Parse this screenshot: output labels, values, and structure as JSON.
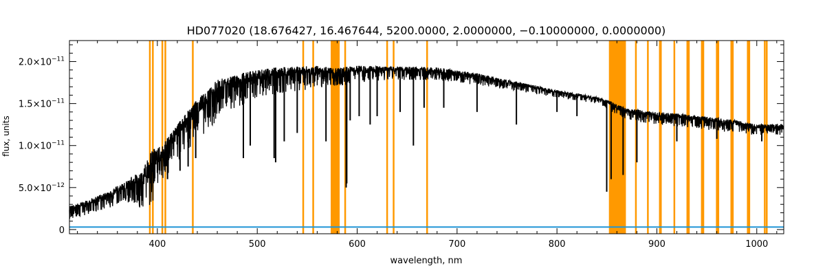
{
  "chart_data": {
    "type": "line",
    "title": "HD077020   (18.676427, 16.467644, 5200.0000, 2.0000000, −0.10000000, 0.0000000)",
    "xlabel": "wavelength, nm",
    "ylabel": "flux, units",
    "xlim": [
      312,
      1027
    ],
    "ylim": [
      -5e-13,
      2.25e-11
    ],
    "x_ticks": [
      400,
      500,
      600,
      700,
      800,
      900,
      1000
    ],
    "y_ticks": [
      {
        "value": 0,
        "mant": "0",
        "exp": ""
      },
      {
        "value": 5e-12,
        "mant": "5.0×10",
        "exp": "−12"
      },
      {
        "value": 1e-11,
        "mant": "1.0×10",
        "exp": "−11"
      },
      {
        "value": 1.5e-11,
        "mant": "1.5×10",
        "exp": "−11"
      },
      {
        "value": 2e-11,
        "mant": "2.0×10",
        "exp": "−11"
      }
    ],
    "spectrum": {
      "color": "#000000",
      "envelope": [
        [
          312,
          1.2e-12,
          2.8e-12
        ],
        [
          330,
          1.8e-12,
          3.5e-12
        ],
        [
          350,
          2.5e-12,
          4.5e-12
        ],
        [
          370,
          3e-12,
          6e-12
        ],
        [
          385,
          2.5e-12,
          7e-12
        ],
        [
          395,
          3e-12,
          9.5e-12
        ],
        [
          405,
          5.5e-12,
          1e-11
        ],
        [
          420,
          8e-12,
          1.25e-11
        ],
        [
          440,
          1.05e-11,
          1.55e-11
        ],
        [
          460,
          1.3e-11,
          1.78e-11
        ],
        [
          480,
          1.45e-11,
          1.85e-11
        ],
        [
          500,
          1.55e-11,
          1.9e-11
        ],
        [
          520,
          1.6e-11,
          1.93e-11
        ],
        [
          540,
          1.65e-11,
          1.94e-11
        ],
        [
          560,
          1.68e-11,
          1.95e-11
        ],
        [
          578,
          1.7e-11,
          1.92e-11
        ],
        [
          600,
          1.75e-11,
          1.95e-11
        ],
        [
          640,
          1.78e-11,
          1.94e-11
        ],
        [
          680,
          1.78e-11,
          1.93e-11
        ],
        [
          720,
          1.72e-11,
          1.86e-11
        ],
        [
          760,
          1.65e-11,
          1.76e-11
        ],
        [
          800,
          1.57e-11,
          1.66e-11
        ],
        [
          840,
          1.5e-11,
          1.58e-11
        ],
        [
          855,
          1.4e-11,
          1.52e-11
        ],
        [
          870,
          1.3e-11,
          1.44e-11
        ],
        [
          900,
          1.25e-11,
          1.4e-11
        ],
        [
          940,
          1.2e-11,
          1.36e-11
        ],
        [
          980,
          1.15e-11,
          1.3e-11
        ],
        [
          1000,
          1.12e-11,
          1.25e-11
        ],
        [
          1027,
          1.12e-11,
          1.26e-11
        ]
      ],
      "absorption_lines": [
        [
          393.4,
          5.5e-12
        ],
        [
          396.8,
          5.8e-12
        ],
        [
          410.2,
          6e-12
        ],
        [
          422.7,
          7e-12
        ],
        [
          430.8,
          7.5e-12
        ],
        [
          438.4,
          8.5e-12
        ],
        [
          486.1,
          8.5e-12
        ],
        [
          493.0,
          1e-11
        ],
        [
          516.9,
          8.5e-12
        ],
        [
          518.4,
          8e-12
        ],
        [
          527.0,
          1.05e-11
        ],
        [
          540.0,
          1.15e-11
        ],
        [
          568.8,
          1.05e-11
        ],
        [
          589.0,
          5e-12
        ],
        [
          589.6,
          5.5e-12
        ],
        [
          593.0,
          1.3e-11
        ],
        [
          602.0,
          1.35e-11
        ],
        [
          613.0,
          1.25e-11
        ],
        [
          620.0,
          1.35e-11
        ],
        [
          643.0,
          1.4e-11
        ],
        [
          656.3,
          1e-11
        ],
        [
          667.0,
          1.45e-11
        ],
        [
          686.7,
          1.45e-11
        ],
        [
          720.0,
          1.4e-11
        ],
        [
          759.4,
          1.25e-11
        ],
        [
          800.0,
          1.4e-11
        ],
        [
          820.0,
          1.35e-11
        ],
        [
          849.8,
          4.5e-12
        ],
        [
          854.2,
          6e-12
        ],
        [
          866.2,
          6.5e-12
        ],
        [
          880.0,
          8e-12
        ],
        [
          920.0,
          1.05e-11
        ],
        [
          960.0,
          1.08e-11
        ],
        [
          1005.0,
          1.05e-11
        ]
      ]
    },
    "error_series": {
      "color": "#2196d6",
      "value": 3e-13
    },
    "masked_regions": {
      "color": "#ff9900",
      "spans": [
        [
          573.5,
          582.5
        ],
        [
          852,
          869
        ]
      ],
      "lines": [
        392.5,
        395.5,
        405.0,
        408.0,
        435.5,
        546.0,
        556.0,
        588.0,
        630.0,
        636.5,
        670.0,
        879.0,
        891.0,
        903.0,
        904.0,
        917.5,
        930.5,
        932.0,
        945.0,
        946.5,
        960.0,
        961.5,
        974.5,
        976.0,
        991.0,
        992.5,
        1008.0,
        1010.0
      ]
    }
  }
}
